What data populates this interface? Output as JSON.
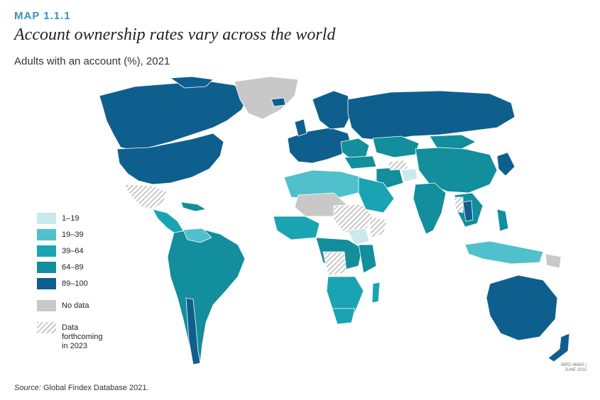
{
  "header": {
    "map_label": "MAP 1.1.1",
    "title": "Account ownership rates vary across the world",
    "subtitle": "Adults with an account (%), 2021"
  },
  "legend": {
    "items": [
      {
        "label": "1–19",
        "color": "#c9e9ec"
      },
      {
        "label": "19–39",
        "color": "#4fc0cc"
      },
      {
        "label": "39–64",
        "color": "#1aa3b2"
      },
      {
        "label": "64–89",
        "color": "#128e9c"
      },
      {
        "label": "89–100",
        "color": "#0f5f8e"
      },
      {
        "label": "No data",
        "color": "#c8c8c8"
      },
      {
        "label": "Data forthcoming in 2023",
        "color": "hatch"
      }
    ]
  },
  "footer": {
    "source_prefix": "Source:",
    "source_text": "Global Findex Database 2021.",
    "ibrd_line1": "IBRD 46663 |",
    "ibrd_line2": "JUNE 2022"
  },
  "colors": {
    "band_1_19": "#c9e9ec",
    "band_19_39": "#4fc0cc",
    "band_39_64": "#1aa3b2",
    "band_64_89": "#128e9c",
    "band_89_100": "#0f5f8e",
    "no_data": "#c8c8c8",
    "accent": "#3a8fc7"
  }
}
